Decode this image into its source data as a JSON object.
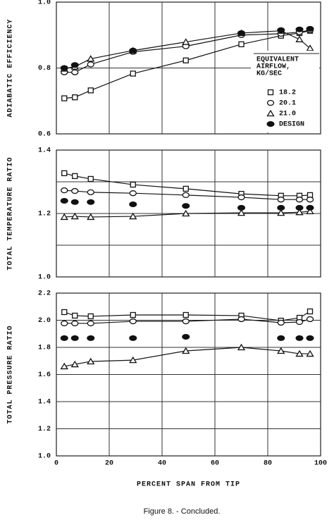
{
  "chart_data": [
    {
      "type": "scatter",
      "ylabel": "ADIABATIC EFFICIENCY",
      "x": [
        3,
        7,
        13,
        29,
        49,
        70,
        85,
        92,
        96
      ],
      "xlim": [
        0,
        100
      ],
      "xticks": [
        0,
        20,
        40,
        60,
        80,
        100
      ],
      "show_xtick_labels": false,
      "ylim": [
        0.6,
        1.0
      ],
      "yticks": [
        {
          "value": 0.6,
          "label": "0.6"
        },
        {
          "value": 0.8,
          "label": "0.8"
        },
        {
          "value": 1.0,
          "label": "1.0"
        }
      ],
      "grid": true,
      "legend_title": [
        "EQUIVALENT",
        "AIRFLOW,",
        "KG/SEC"
      ],
      "legend": "lower right",
      "series": [
        {
          "name": "18.2",
          "color": "#111",
          "marker": "square",
          "line": true,
          "values": [
            0.708,
            0.711,
            0.732,
            0.783,
            0.823,
            0.872,
            0.898,
            0.906,
            0.913
          ]
        },
        {
          "name": "20.1",
          "color": "#111",
          "marker": "circle",
          "line": true,
          "values": [
            0.787,
            0.787,
            0.811,
            0.849,
            0.866,
            0.9,
            0.904,
            0.909,
            0.915
          ]
        },
        {
          "name": "21.0",
          "color": "#111",
          "marker": "triangle",
          "line": true,
          "values": [
            0.798,
            0.804,
            0.828,
            0.853,
            0.879,
            0.906,
            0.913,
            0.887,
            0.86
          ]
        },
        {
          "name": "DESIGN",
          "color": "#111",
          "marker": "filled",
          "line": false,
          "values": [
            0.8,
            0.809,
            null,
            0.853,
            null,
            0.906,
            0.915,
            0.917,
            0.919
          ]
        }
      ]
    },
    {
      "type": "scatter",
      "ylabel": "TOTAL TEMPERATURE RATIO",
      "x": [
        3,
        7,
        13,
        29,
        49,
        70,
        85,
        92,
        96
      ],
      "xlim": [
        0,
        100
      ],
      "xticks": [
        0,
        20,
        40,
        60,
        80,
        100
      ],
      "show_xtick_labels": false,
      "ylim": [
        1.0,
        1.4
      ],
      "yticks": [
        {
          "value": 1.0,
          "label": "1.0"
        },
        {
          "value": 1.2,
          "label": "1.2"
        },
        {
          "value": 1.4,
          "label": "1.4"
        }
      ],
      "minor_yticks": [
        1.1,
        1.3
      ],
      "grid": true,
      "series": [
        {
          "name": "18.2",
          "color": "#111",
          "marker": "square",
          "line": true,
          "values": [
            1.327,
            1.318,
            1.309,
            1.291,
            1.278,
            1.262,
            1.256,
            1.256,
            1.258
          ]
        },
        {
          "name": "20.1",
          "color": "#111",
          "marker": "circle",
          "line": true,
          "values": [
            1.273,
            1.271,
            1.267,
            1.264,
            1.258,
            1.251,
            1.244,
            1.244,
            1.244
          ]
        },
        {
          "name": "21.0",
          "color": "#111",
          "marker": "triangle",
          "line": true,
          "values": [
            1.189,
            1.191,
            1.189,
            1.191,
            1.2,
            1.202,
            1.202,
            1.204,
            1.207
          ]
        },
        {
          "name": "DESIGN",
          "color": "#111",
          "marker": "filled",
          "line": false,
          "values": [
            1.24,
            1.236,
            1.236,
            1.229,
            1.224,
            1.218,
            1.218,
            1.218,
            1.218
          ]
        }
      ]
    },
    {
      "type": "scatter",
      "ylabel": "TOTAL PRESSURE RATIO",
      "xlabel": "PERCENT SPAN FROM TIP",
      "x": [
        3,
        7,
        13,
        29,
        49,
        70,
        85,
        92,
        96
      ],
      "xlim": [
        0,
        100
      ],
      "xticks": [
        0,
        20,
        40,
        60,
        80,
        100
      ],
      "show_xtick_labels": true,
      "ylim": [
        1.0,
        2.2
      ],
      "yticks": [
        {
          "value": 1.0,
          "label": "1.0"
        },
        1.2,
        1.4,
        1.6,
        1.8,
        {
          "value": 2.0,
          "label": "2.0"
        },
        2.2
      ],
      "grid": true,
      "series": [
        {
          "name": "18.2",
          "color": "#111",
          "marker": "square",
          "line": true,
          "values": [
            2.06,
            2.034,
            2.029,
            2.039,
            2.039,
            2.034,
            1.997,
            2.018,
            2.065
          ]
        },
        {
          "name": "20.1",
          "color": "#111",
          "marker": "circle",
          "line": true,
          "values": [
            1.977,
            1.977,
            1.977,
            1.992,
            1.992,
            2.008,
            1.982,
            1.987,
            2.008
          ]
        },
        {
          "name": "21.0",
          "color": "#111",
          "marker": "triangle",
          "line": true,
          "values": [
            1.66,
            1.675,
            1.696,
            1.706,
            1.774,
            1.8,
            1.774,
            1.753,
            1.753
          ]
        },
        {
          "name": "DESIGN",
          "color": "#111",
          "marker": "filled",
          "line": false,
          "values": [
            1.868,
            1.868,
            1.868,
            1.868,
            1.878,
            null,
            1.868,
            1.868,
            1.868
          ]
        }
      ]
    }
  ],
  "caption": "Figure 8. - Concluded."
}
